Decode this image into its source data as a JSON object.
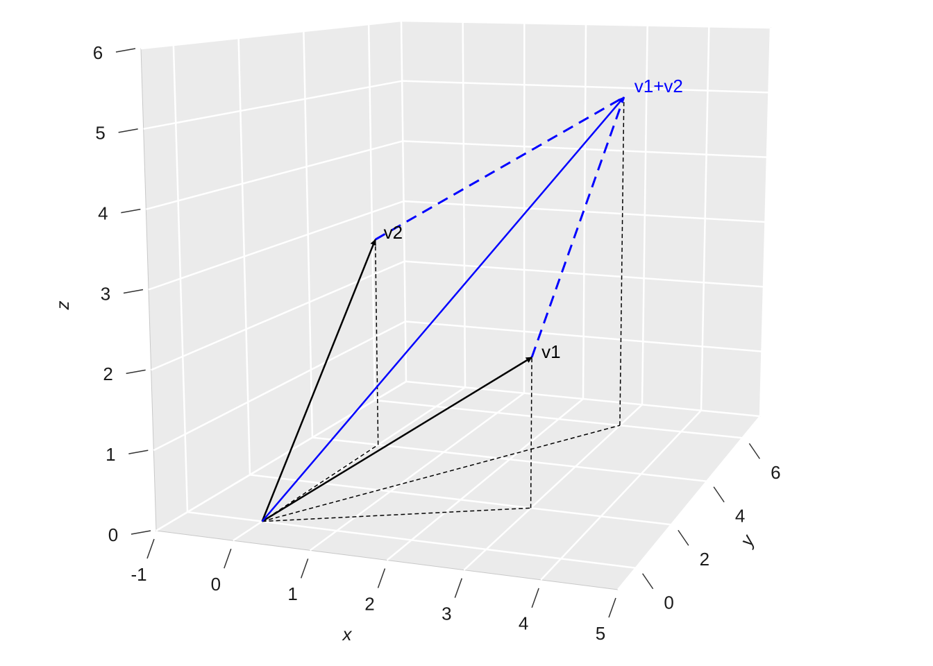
{
  "chart_data": {
    "type": "vector3d",
    "xlabel": "x",
    "ylabel": "y",
    "zlabel": "z",
    "xlim": [
      -1,
      5
    ],
    "ylim": [
      -1,
      7
    ],
    "zlim": [
      0,
      6
    ],
    "xticks": [
      -1,
      0,
      1,
      2,
      3,
      4,
      5
    ],
    "yticks": [
      0,
      2,
      4,
      6
    ],
    "zticks": [
      0,
      1,
      2,
      3,
      4,
      5,
      6
    ],
    "grid": true,
    "vectors": [
      {
        "name": "v1",
        "color": "#000000",
        "values": [
          3,
          2,
          2
        ]
      },
      {
        "name": "v2",
        "color": "#000000",
        "values": [
          0,
          4,
          3
        ]
      },
      {
        "name": "v1+v2",
        "color": "#0000ff",
        "values": [
          3,
          6,
          5
        ]
      }
    ]
  }
}
